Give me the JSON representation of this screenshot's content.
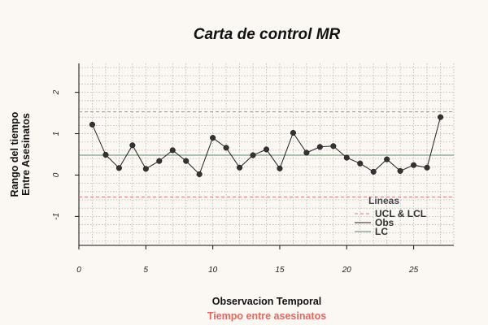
{
  "chart_data": {
    "type": "line",
    "title": "Carta de control MR",
    "xlabel": "Observacion Temporal",
    "ylabel_lines": [
      "Rango del tiempo",
      "Entre Asesinatos"
    ],
    "subtitle": "Tiempo entre asesinatos",
    "xlim": [
      0,
      28
    ],
    "ylim": [
      -1.7,
      2.7
    ],
    "x_ticks": [
      0,
      5,
      10,
      15,
      20,
      25
    ],
    "y_ticks": [
      -1,
      0,
      1,
      2
    ],
    "grid": true,
    "series": [
      {
        "name": "Obs",
        "x": [
          1,
          2,
          3,
          4,
          5,
          6,
          7,
          8,
          9,
          10,
          11,
          12,
          13,
          14,
          15,
          16,
          17,
          18,
          19,
          20,
          21,
          22,
          23,
          24,
          25,
          26,
          27
        ],
        "y": [
          1.22,
          0.49,
          0.17,
          0.72,
          0.15,
          0.34,
          0.6,
          0.34,
          0.02,
          0.9,
          0.66,
          0.18,
          0.48,
          0.62,
          0.16,
          1.02,
          0.54,
          0.68,
          0.7,
          0.42,
          0.28,
          0.08,
          0.38,
          0.1,
          0.24,
          0.18,
          1.4
        ]
      }
    ],
    "ucl": 1.53,
    "lcl": -0.53,
    "lc": 0.48,
    "legend": {
      "title": "Lineas",
      "position": "bottom-right",
      "entries": [
        {
          "label": "UCL & LCL",
          "color": "#e0747a",
          "style": "dashed"
        },
        {
          "label": "Obs",
          "color": "#222222",
          "style": "solid"
        },
        {
          "label": "LC",
          "color": "#5e8a6c",
          "style": "solid"
        }
      ]
    },
    "colors": {
      "line": "#222222",
      "point": "#333333",
      "limits": "#e0747a",
      "center": "#5e8a6c",
      "grid": "#b3b3b3",
      "subtitle": "#e8665d",
      "background": "#fbf8f3"
    }
  }
}
